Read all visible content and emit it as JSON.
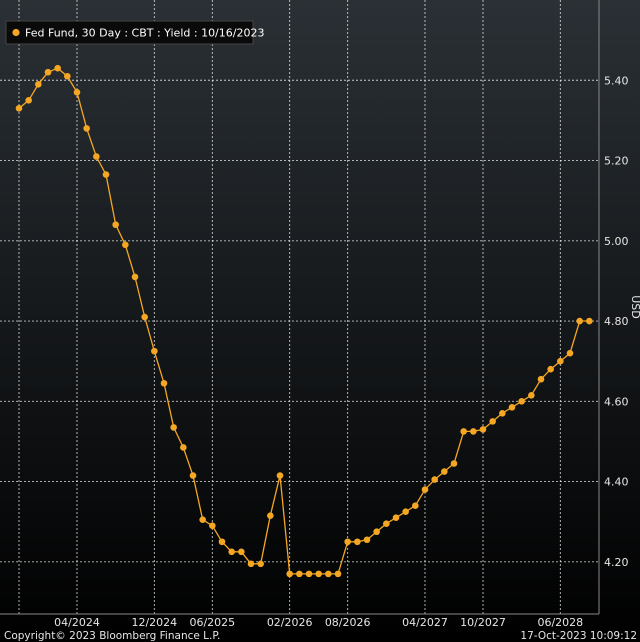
{
  "legend": {
    "label": "Fed Fund, 30 Day : CBT : Yield : 10/16/2023"
  },
  "footer": {
    "copyright": "Copyright© 2023 Bloomberg Finance L.P.",
    "timestamp": "17-Oct-2023 10:09:12"
  },
  "colors": {
    "background_top": "#2a3035",
    "background_bottom": "#000000",
    "series": "#f5a623",
    "grid": "#ffffff",
    "text": "#e6e6e6"
  },
  "chart_data": {
    "type": "line",
    "ylabel": "USD",
    "ylim": [
      4.07,
      5.6
    ],
    "yticks": [
      4.2,
      4.4,
      4.6,
      4.8,
      5.0,
      5.2,
      5.4
    ],
    "ytick_labels": [
      "4.20",
      "4.40",
      "4.60",
      "4.80",
      "5.00",
      "5.20",
      "5.40"
    ],
    "xlim": [
      0,
      60
    ],
    "x_ticks": [
      {
        "label": "04/2024",
        "at": 6
      },
      {
        "label": "12/2024",
        "at": 14
      },
      {
        "label": "06/2025",
        "at": 20
      },
      {
        "label": "02/2026",
        "at": 28
      },
      {
        "label": "08/2026",
        "at": 34
      },
      {
        "label": "04/2027",
        "at": 42
      },
      {
        "label": "10/2027",
        "at": 48
      },
      {
        "label": "06/2028",
        "at": 56
      }
    ],
    "grid": true,
    "legend_position": "top-left",
    "series": [
      {
        "name": "Fed Fund, 30 Day : CBT : Yield : 10/16/2023",
        "x": [
          0,
          1,
          2,
          3,
          4,
          5,
          6,
          7,
          8,
          9,
          10,
          11,
          12,
          13,
          14,
          15,
          16,
          17,
          18,
          19,
          20,
          21,
          22,
          23,
          24,
          25,
          26,
          27,
          28,
          29,
          30,
          31,
          32,
          33,
          34,
          35,
          36,
          37,
          38,
          39,
          40,
          41,
          42,
          43,
          44,
          45,
          46,
          47,
          48,
          49,
          50,
          51,
          52,
          53,
          54,
          55,
          56,
          57,
          58,
          59
        ],
        "values": [
          5.33,
          5.35,
          5.39,
          5.42,
          5.43,
          5.41,
          5.37,
          5.28,
          5.21,
          5.165,
          5.04,
          4.99,
          4.91,
          4.81,
          4.725,
          4.645,
          4.535,
          4.485,
          4.415,
          4.305,
          4.29,
          4.25,
          4.225,
          4.225,
          4.195,
          4.195,
          4.315,
          4.415,
          4.17,
          4.17,
          4.17,
          4.17,
          4.17,
          4.17,
          4.25,
          4.25,
          4.255,
          4.275,
          4.295,
          4.31,
          4.325,
          4.34,
          4.38,
          4.405,
          4.425,
          4.445,
          4.525,
          4.525,
          4.53,
          4.55,
          4.57,
          4.585,
          4.6,
          4.615,
          4.655,
          4.68,
          4.7,
          4.72,
          4.8,
          4.8
        ]
      }
    ]
  }
}
